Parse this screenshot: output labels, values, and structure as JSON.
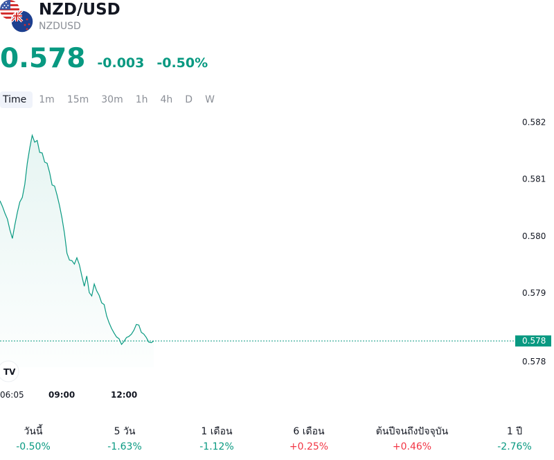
{
  "header": {
    "name": "NZD/USD",
    "code": "NZDUSD",
    "price": "0.578",
    "change": "-0.003",
    "change_pct": "-0.50%"
  },
  "tabs": [
    {
      "label": "Time",
      "active": true
    },
    {
      "label": "1m",
      "active": false
    },
    {
      "label": "15m",
      "active": false
    },
    {
      "label": "30m",
      "active": false
    },
    {
      "label": "1h",
      "active": false
    },
    {
      "label": "4h",
      "active": false
    },
    {
      "label": "D",
      "active": false
    },
    {
      "label": "W",
      "active": false
    }
  ],
  "colors": {
    "line": "#089981",
    "positive": "#f23645",
    "negative": "#089981"
  },
  "chart_data": {
    "type": "area",
    "x_tick_labels": [
      "06:05",
      "09:00",
      "12:00"
    ],
    "y_tick_labels": [
      "0.582",
      "0.581",
      "0.580",
      "0.579",
      "0.578"
    ],
    "ylim": [
      0.5777,
      0.5822
    ],
    "current_price_label": "0.578",
    "current_value": 0.57816,
    "series": [
      {
        "values": [
          0.58062,
          0.58052,
          0.5804,
          0.5803,
          0.58011,
          0.57996,
          0.5802,
          0.58042,
          0.5806,
          0.58068,
          0.58091,
          0.58128,
          0.58155,
          0.58177,
          0.58165,
          0.58168,
          0.58147,
          0.58146,
          0.5813,
          0.58128,
          0.58112,
          0.5809,
          0.58088,
          0.58072,
          0.58054,
          0.58032,
          0.58005,
          0.5797,
          0.57958,
          0.57957,
          0.57951,
          0.57962,
          0.5795,
          0.5793,
          0.57912,
          0.5793,
          0.57901,
          0.57895,
          0.57916,
          0.57904,
          0.57896,
          0.57883,
          0.5788,
          0.5786,
          0.57848,
          0.57838,
          0.5783,
          0.57823,
          0.5782,
          0.5781,
          0.57815,
          0.57822,
          0.57824,
          0.57828,
          0.57835,
          0.57845,
          0.57844,
          0.57831,
          0.57828,
          0.57822,
          0.57814,
          0.57813,
          0.57816
        ]
      }
    ]
  },
  "performance": [
    {
      "label": "วันนี้",
      "value": "-0.50%",
      "direction": "down"
    },
    {
      "label": "5 วัน",
      "value": "-1.63%",
      "direction": "down"
    },
    {
      "label": "1 เดือน",
      "value": "-1.12%",
      "direction": "down"
    },
    {
      "label": "6 เดือน",
      "value": "+0.25%",
      "direction": "up"
    },
    {
      "label": "ต้นปีจนถึงปัจจุบัน",
      "value": "+0.46%",
      "direction": "up"
    },
    {
      "label": "1 ปี",
      "value": "-2.76%",
      "direction": "down"
    }
  ]
}
